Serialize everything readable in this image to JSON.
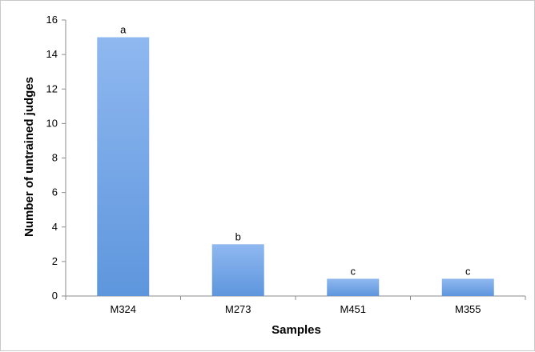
{
  "chart_data": {
    "type": "bar",
    "title": "",
    "xlabel": "Samples",
    "ylabel": "Number of untrained judges",
    "categories": [
      "M324",
      "M273",
      "M451",
      "M355"
    ],
    "values": [
      15,
      3,
      1,
      1
    ],
    "data_labels": [
      "a",
      "b",
      "c",
      "c"
    ],
    "ylim": [
      0,
      16
    ],
    "yticks": [
      0,
      2,
      4,
      6,
      8,
      10,
      12,
      14,
      16
    ],
    "grid": false,
    "bar_color": "#8fb8f0",
    "bar_color_dark": "#5e96dd"
  }
}
